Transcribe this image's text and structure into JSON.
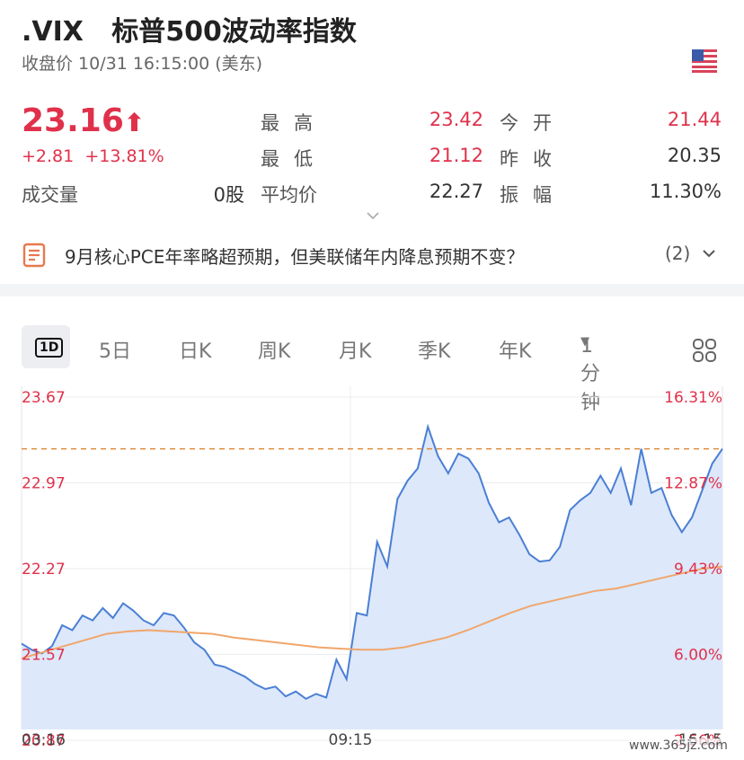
{
  "header": {
    "symbol": ".VIX",
    "name": "标普500波动率指数",
    "close_time": "收盘价 10/31 16:15:00 (美东)",
    "flag_icon": "us-flag-icon"
  },
  "quote": {
    "price": "23.16",
    "change": "+2.81",
    "change_pct": "+13.81%",
    "volume_label": "成交量",
    "volume_value": "0股",
    "high_label": "最高",
    "high_value": "23.42",
    "low_label": "最低",
    "low_value": "21.12",
    "avg_label": "平均价",
    "avg_value": "22.27",
    "open_label": "今开",
    "open_value": "21.44",
    "prev_label": "昨收",
    "prev_value": "20.35",
    "amp_label": "振幅",
    "amp_value": "11.30%"
  },
  "news": {
    "text": "9月核心PCE年率略超预期，但美联储年内降息预期不变？",
    "count": "(2)"
  },
  "tabs": [
    "1D",
    "5日",
    "日K",
    "周K",
    "月K",
    "季K",
    "年K",
    "1分钟"
  ],
  "colors": {
    "up": "#e0314b",
    "line": "#4a7fd4",
    "avg": "#f0a66b",
    "prev": "#e08a3a"
  },
  "chart_data": {
    "type": "line",
    "y_left_ticks": [
      "23.67",
      "22.97",
      "22.27",
      "21.57",
      "20.87"
    ],
    "y_right_ticks": [
      "16.31%",
      "12.87%",
      "9.43%",
      "6.00%",
      "2.56%"
    ],
    "x_ticks": [
      "03:16",
      "09:15",
      "16:15"
    ],
    "ylim": [
      20.87,
      23.67
    ],
    "reference_line": 23.16,
    "series": [
      {
        "values": [
          21.57,
          21.52,
          21.49,
          21.55,
          21.72,
          21.68,
          21.8,
          21.76,
          21.86,
          21.78,
          21.9,
          21.84,
          21.76,
          21.72,
          21.82,
          21.8,
          21.7,
          21.58,
          21.52,
          21.4,
          21.38,
          21.34,
          21.3,
          21.24,
          21.2,
          21.22,
          21.14,
          21.18,
          21.12,
          21.16,
          21.13,
          21.44,
          21.28,
          21.82,
          21.8,
          22.4,
          22.2,
          22.75,
          22.9,
          23.0,
          23.34,
          23.1,
          22.96,
          23.12,
          23.08,
          22.96,
          22.72,
          22.56,
          22.6,
          22.46,
          22.3,
          22.24,
          22.25,
          22.36,
          22.66,
          22.74,
          22.8,
          22.94,
          22.8,
          23.0,
          22.7,
          23.16,
          22.8,
          22.84,
          22.62,
          22.48,
          22.6,
          22.82,
          23.04,
          23.16
        ]
      },
      {
        "values": [
          21.45,
          21.5,
          21.55,
          21.6,
          21.65,
          21.67,
          21.68,
          21.67,
          21.66,
          21.65,
          21.62,
          21.6,
          21.58,
          21.56,
          21.54,
          21.53,
          21.52,
          21.52,
          21.54,
          21.58,
          21.62,
          21.68,
          21.75,
          21.82,
          21.88,
          21.92,
          21.96,
          22.0,
          22.02,
          22.06,
          22.1,
          22.14,
          22.18,
          22.2
        ]
      }
    ]
  }
}
